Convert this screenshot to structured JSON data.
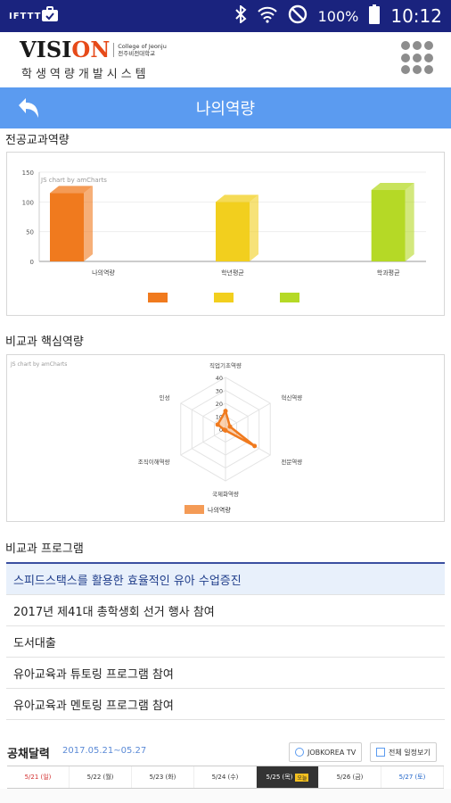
{
  "status_bar": {
    "left_icons": [
      "ifttt-icon",
      "briefcase-icon"
    ],
    "ifttt_label": "IFTTT",
    "battery": "100%",
    "time": "10:12"
  },
  "app": {
    "logo_main": "VISI",
    "logo_accent": "ON",
    "logo_college_en": "College of Jeonju",
    "logo_college_kr": "전주비전대학교",
    "logo_sub": "학생역량개발시스템"
  },
  "titlebar": {
    "title": "나의역량"
  },
  "sections": {
    "major": "전공교과역량",
    "core": "비교과 핵심역량",
    "programs": "비교과 프로그램"
  },
  "chart_credit": "JS chart by amCharts",
  "colors": {
    "accent": "#5b9bf0",
    "status_bar": "#1a237e",
    "bar1": "#f07a1e",
    "bar2": "#f2cf1e",
    "bar3": "#b5d926",
    "radar": "#f07a1e"
  },
  "chart_data": [
    {
      "type": "bar",
      "title": "",
      "categories": [
        "나의역량",
        "학년평균",
        "학과평균"
      ],
      "values": [
        115,
        100,
        120
      ],
      "ylim": [
        0,
        150
      ],
      "yticks": [
        "0",
        "50",
        "100",
        "150"
      ],
      "grid": true,
      "legend": "bottom"
    },
    {
      "type": "radar",
      "axes": [
        "직업기초역량",
        "혁신역량",
        "전문역량",
        "국제화역량",
        "조직이해역량",
        "인성"
      ],
      "rticks": [
        "0",
        "10",
        "20",
        "30",
        "40"
      ],
      "rmax": 40,
      "series": [
        {
          "name": "나의역량",
          "values": [
            14,
            4,
            26,
            1,
            1,
            7
          ]
        }
      ],
      "legend": "bottom"
    }
  ],
  "programs": [
    "스피드스택스를 활용한 효율적인 유아 수업증진",
    "2017년 제41대 총학생회 선거 행사 참여",
    "도서대출",
    "유아교육과 튜토링 프로그램 참여",
    "유아교육과 멘토링 프로그램 참여"
  ],
  "jobs": {
    "title": "공채달력",
    "range": "2017.05.21~05.27",
    "jobkorea_btn": "JOBKOREA TV",
    "schedule_btn": "전체 일정보기",
    "days": [
      "5/21 (일)",
      "5/22 (월)",
      "5/23 (화)",
      "5/24 (수)",
      "5/25 (목)",
      "5/26 (금)",
      "5/27 (토)"
    ],
    "today_badge": "오늘"
  }
}
